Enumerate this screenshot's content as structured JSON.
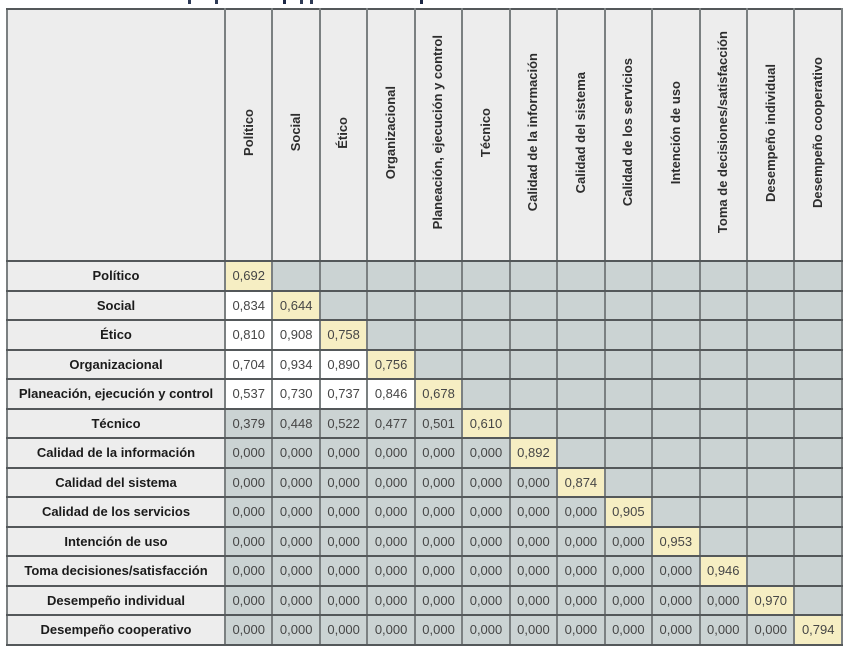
{
  "table": {
    "columns": [
      "Político",
      "Social",
      "Ético",
      "Organizacional",
      "Planeación, ejecución y control",
      "Técnico",
      "Calidad de la información",
      "Calidad del sistema",
      "Calidad de los servicios",
      "Intención de uso",
      "Toma de decisiones/satisfacción",
      "Desempeño individual",
      "Desempeño cooperativo"
    ],
    "rows": [
      {
        "label": "Político",
        "lower_bg": "w",
        "values": [
          "0,692"
        ]
      },
      {
        "label": "Social",
        "lower_bg": "w",
        "values": [
          "0,834",
          "0,644"
        ]
      },
      {
        "label": "Ético",
        "lower_bg": "w",
        "values": [
          "0,810",
          "0,908",
          "0,758"
        ]
      },
      {
        "label": "Organizacional",
        "lower_bg": "w",
        "values": [
          "0,704",
          "0,934",
          "0,890",
          "0,756"
        ]
      },
      {
        "label": "Planeación, ejecución y control",
        "lower_bg": "w",
        "values": [
          "0,537",
          "0,730",
          "0,737",
          "0,846",
          "0,678"
        ]
      },
      {
        "label": "Técnico",
        "lower_bg": "g",
        "values": [
          "0,379",
          "0,448",
          "0,522",
          "0,477",
          "0,501",
          "0,610"
        ]
      },
      {
        "label": "Calidad de la información",
        "lower_bg": "g",
        "values": [
          "0,000",
          "0,000",
          "0,000",
          "0,000",
          "0,000",
          "0,000",
          "0,892"
        ]
      },
      {
        "label": "Calidad del sistema",
        "lower_bg": "g",
        "values": [
          "0,000",
          "0,000",
          "0,000",
          "0,000",
          "0,000",
          "0,000",
          "0,000",
          "0,874"
        ]
      },
      {
        "label": "Calidad de los servicios",
        "lower_bg": "g",
        "values": [
          "0,000",
          "0,000",
          "0,000",
          "0,000",
          "0,000",
          "0,000",
          "0,000",
          "0,000",
          "0,905"
        ]
      },
      {
        "label": "Intención de uso",
        "lower_bg": "g",
        "values": [
          "0,000",
          "0,000",
          "0,000",
          "0,000",
          "0,000",
          "0,000",
          "0,000",
          "0,000",
          "0,000",
          "0,953"
        ]
      },
      {
        "label": "Toma decisiones/satisfacción",
        "lower_bg": "g",
        "values": [
          "0,000",
          "0,000",
          "0,000",
          "0,000",
          "0,000",
          "0,000",
          "0,000",
          "0,000",
          "0,000",
          "0,000",
          "0,946"
        ]
      },
      {
        "label": "Desempeño individual",
        "lower_bg": "g",
        "values": [
          "0,000",
          "0,000",
          "0,000",
          "0,000",
          "0,000",
          "0,000",
          "0,000",
          "0,000",
          "0,000",
          "0,000",
          "0,000",
          "0,970"
        ]
      },
      {
        "label": "Desempeño cooperativo",
        "lower_bg": "g",
        "values": [
          "0,000",
          "0,000",
          "0,000",
          "0,000",
          "0,000",
          "0,000",
          "0,000",
          "0,000",
          "0,000",
          "0,000",
          "0,000",
          "0,000",
          "0,794"
        ]
      }
    ]
  },
  "colors": {
    "diagonal_bg": "#f6eec3",
    "gray_cell_bg": "#cbd3d3",
    "white_cell_bg": "#ffffff",
    "header_bg": "#ededed",
    "vertical_border": "#7b8081",
    "horizontal_border": "#54585a"
  },
  "chart_data": {
    "type": "table",
    "row_labels": [
      "Político",
      "Social",
      "Ético",
      "Organizacional",
      "Planeación, ejecución y control",
      "Técnico",
      "Calidad de la información",
      "Calidad del sistema",
      "Calidad de los servicios",
      "Intención de uso",
      "Toma decisiones/satisfacción",
      "Desempeño individual",
      "Desempeño cooperativo"
    ],
    "column_labels": [
      "Político",
      "Social",
      "Ético",
      "Organizacional",
      "Planeación, ejecución y control",
      "Técnico",
      "Calidad de la información",
      "Calidad del sistema",
      "Calidad de los servicios",
      "Intención de uso",
      "Toma de decisiones/satisfacción",
      "Desempeño individual",
      "Desempeño cooperativo"
    ],
    "matrix": [
      [
        0.692,
        null,
        null,
        null,
        null,
        null,
        null,
        null,
        null,
        null,
        null,
        null,
        null
      ],
      [
        0.834,
        0.644,
        null,
        null,
        null,
        null,
        null,
        null,
        null,
        null,
        null,
        null,
        null
      ],
      [
        0.81,
        0.908,
        0.758,
        null,
        null,
        null,
        null,
        null,
        null,
        null,
        null,
        null,
        null
      ],
      [
        0.704,
        0.934,
        0.89,
        0.756,
        null,
        null,
        null,
        null,
        null,
        null,
        null,
        null,
        null
      ],
      [
        0.537,
        0.73,
        0.737,
        0.846,
        0.678,
        null,
        null,
        null,
        null,
        null,
        null,
        null,
        null
      ],
      [
        0.379,
        0.448,
        0.522,
        0.477,
        0.501,
        0.61,
        null,
        null,
        null,
        null,
        null,
        null,
        null
      ],
      [
        0.0,
        0.0,
        0.0,
        0.0,
        0.0,
        0.0,
        0.892,
        null,
        null,
        null,
        null,
        null,
        null
      ],
      [
        0.0,
        0.0,
        0.0,
        0.0,
        0.0,
        0.0,
        0.0,
        0.874,
        null,
        null,
        null,
        null,
        null
      ],
      [
        0.0,
        0.0,
        0.0,
        0.0,
        0.0,
        0.0,
        0.0,
        0.0,
        0.905,
        null,
        null,
        null,
        null
      ],
      [
        0.0,
        0.0,
        0.0,
        0.0,
        0.0,
        0.0,
        0.0,
        0.0,
        0.0,
        0.953,
        null,
        null,
        null
      ],
      [
        0.0,
        0.0,
        0.0,
        0.0,
        0.0,
        0.0,
        0.0,
        0.0,
        0.0,
        0.0,
        0.946,
        null,
        null
      ],
      [
        0.0,
        0.0,
        0.0,
        0.0,
        0.0,
        0.0,
        0.0,
        0.0,
        0.0,
        0.0,
        0.0,
        0.97,
        null
      ],
      [
        0.0,
        0.0,
        0.0,
        0.0,
        0.0,
        0.0,
        0.0,
        0.0,
        0.0,
        0.0,
        0.0,
        0.0,
        0.794
      ]
    ],
    "notes": {
      "diagonal_highlighted": true,
      "empty_upper_triangle": true
    }
  }
}
